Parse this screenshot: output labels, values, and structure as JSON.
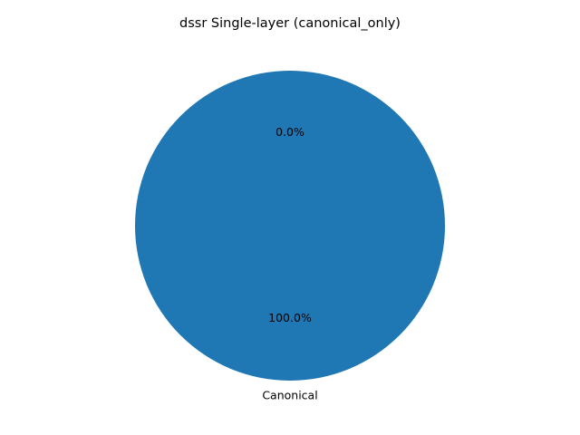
{
  "chart_data": {
    "type": "pie",
    "title": "dssr Single-layer (canonical_only)",
    "slices": [
      {
        "label": "Canonical",
        "value": 100.0,
        "pct_label": "100.0%",
        "color": "#1f77b4"
      },
      {
        "label": "",
        "value": 0.0,
        "pct_label": "0.0%",
        "color": "#ff7f0e"
      }
    ],
    "start_angle_deg": 90,
    "direction": "counterclockwise",
    "legend": "none"
  }
}
